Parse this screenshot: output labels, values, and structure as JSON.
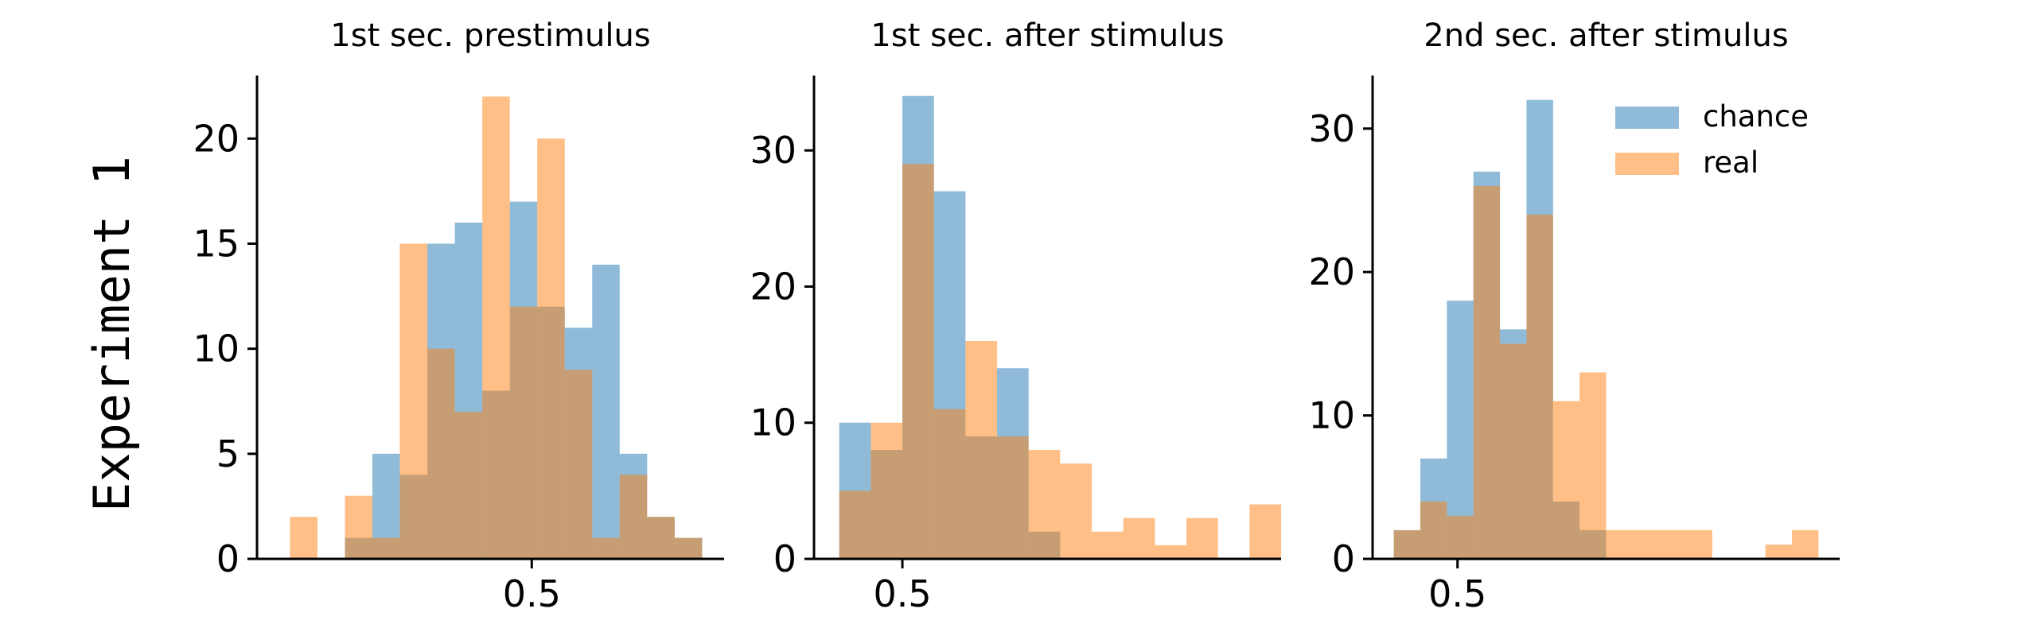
{
  "figure": {
    "row_label": "Experiment 1"
  },
  "colors": {
    "chance": "#1f77b4",
    "real": "#ff7f0e",
    "axis": "#000000"
  },
  "legend": {
    "items": [
      "chance",
      "real"
    ],
    "placement": "upper-right of third panel"
  },
  "chart_data": [
    {
      "type": "histogram",
      "title": "1st sec. prestimulus",
      "xlim": [
        0.0,
        0.85
      ],
      "ylim": [
        0,
        23
      ],
      "x_ticks": [
        0.5
      ],
      "x_tick_labels": [
        "0.5"
      ],
      "y_ticks": [
        0,
        5,
        10,
        15,
        20
      ],
      "y_tick_labels": [
        "0",
        "5",
        "10",
        "15",
        "20"
      ],
      "series": [
        {
          "name": "chance",
          "bin_edges": [
            0.11,
            0.16,
            0.21,
            0.26,
            0.31,
            0.36,
            0.41,
            0.46,
            0.51,
            0.56,
            0.61,
            0.66,
            0.71,
            0.76,
            0.81
          ],
          "values": [
            0,
            1,
            5,
            4,
            15,
            16,
            8,
            17,
            12,
            11,
            14,
            5,
            2,
            1
          ]
        },
        {
          "name": "real",
          "bin_edges": [
            0.06,
            0.11,
            0.16,
            0.21,
            0.26,
            0.31,
            0.36,
            0.41,
            0.46,
            0.51,
            0.56,
            0.61,
            0.66,
            0.71,
            0.76,
            0.81,
            0.86
          ],
          "values": [
            2,
            0,
            3,
            1,
            15,
            10,
            7,
            22,
            12,
            20,
            9,
            1,
            4,
            2,
            1,
            0
          ]
        }
      ]
    },
    {
      "type": "histogram",
      "title": "1st sec. after stimulus",
      "xlim": [
        0.43,
        0.8
      ],
      "ylim": [
        0,
        35.5
      ],
      "x_ticks": [
        0.5
      ],
      "x_tick_labels": [
        "0.5"
      ],
      "y_ticks": [
        0,
        10,
        20,
        30
      ],
      "y_tick_labels": [
        "0",
        "10",
        "20",
        "30"
      ],
      "series": [
        {
          "name": "chance",
          "bin_edges": [
            0.45,
            0.475,
            0.5,
            0.525,
            0.55,
            0.575,
            0.6,
            0.625
          ],
          "values": [
            10,
            8,
            34,
            27,
            9,
            14,
            2
          ]
        },
        {
          "name": "real",
          "bin_edges": [
            0.45,
            0.475,
            0.5,
            0.525,
            0.55,
            0.575,
            0.6,
            0.625,
            0.65,
            0.675,
            0.7,
            0.725,
            0.75,
            0.775,
            0.8
          ],
          "values": [
            5,
            10,
            29,
            11,
            16,
            9,
            8,
            7,
            2,
            3,
            1,
            3,
            0,
            4
          ]
        }
      ]
    },
    {
      "type": "histogram",
      "title": "2nd sec. after stimulus",
      "xlim": [
        0.42,
        0.86
      ],
      "ylim": [
        0,
        33.7
      ],
      "x_ticks": [
        0.5
      ],
      "x_tick_labels": [
        "0.5"
      ],
      "y_ticks": [
        0,
        10,
        20,
        30
      ],
      "y_tick_labels": [
        "0",
        "10",
        "20",
        "30"
      ],
      "series": [
        {
          "name": "chance",
          "bin_edges": [
            0.44,
            0.465,
            0.49,
            0.515,
            0.54,
            0.565,
            0.59,
            0.615,
            0.64
          ],
          "values": [
            2,
            7,
            18,
            27,
            16,
            32,
            4,
            2
          ]
        },
        {
          "name": "real",
          "bin_edges": [
            0.44,
            0.465,
            0.49,
            0.515,
            0.54,
            0.565,
            0.59,
            0.615,
            0.64,
            0.665,
            0.69,
            0.715,
            0.74,
            0.765,
            0.79,
            0.815,
            0.84
          ],
          "values": [
            2,
            4,
            3,
            26,
            15,
            24,
            11,
            13,
            2,
            2,
            2,
            2,
            0,
            0,
            1,
            2
          ]
        }
      ]
    }
  ]
}
